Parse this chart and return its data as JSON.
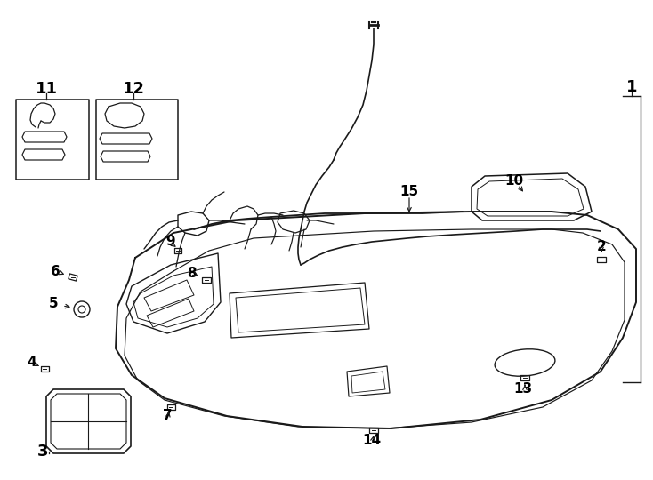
{
  "background_color": "#ffffff",
  "line_color": "#1a1a1a",
  "figsize": [
    7.34,
    5.4
  ],
  "dpi": 100,
  "lw_main": 1.3,
  "lw_thin": 0.9,
  "label_fontsize": 11,
  "label_fontsize_large": 13
}
